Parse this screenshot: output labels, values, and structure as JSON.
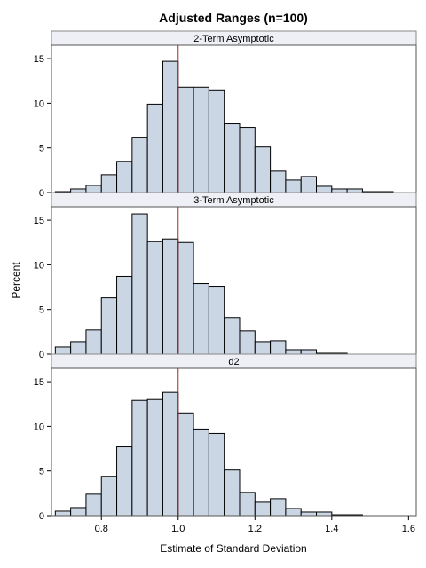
{
  "chart_data": {
    "type": "histogram",
    "title": "Adjusted Ranges (n=100)",
    "xlabel": "Estimate of Standard Deviation",
    "ylabel": "Percent",
    "xlim": [
      0.67,
      1.62
    ],
    "ylim": [
      0,
      16.5
    ],
    "xticks": [
      0.8,
      1.0,
      1.2,
      1.4,
      1.6
    ],
    "xtick_labels": [
      "0.8",
      "1.0",
      "1.2",
      "1.4",
      "1.6"
    ],
    "yticks": [
      0,
      5,
      10,
      15
    ],
    "ytick_labels": [
      "0",
      "5",
      "10",
      "15"
    ],
    "reference_line_x": 1.0,
    "reference_line_color": "#a52a2a",
    "bar_color": "#cbd6e4",
    "bin_width": 0.04,
    "bin_starts": [
      0.68,
      0.72,
      0.76,
      0.8,
      0.84,
      0.88,
      0.92,
      0.96,
      1.0,
      1.04,
      1.08,
      1.12,
      1.16,
      1.2,
      1.24,
      1.28,
      1.32,
      1.36,
      1.4,
      1.44,
      1.48,
      1.52
    ],
    "panels": [
      {
        "label": "2-Term Asymptotic",
        "values": [
          0.1,
          0.4,
          0.8,
          2.0,
          3.5,
          6.2,
          9.9,
          14.7,
          11.8,
          11.8,
          11.5,
          7.7,
          7.3,
          5.1,
          2.4,
          1.4,
          1.8,
          0.7,
          0.4,
          0.4,
          0.1,
          0.1
        ]
      },
      {
        "label": "3-Term Asymptotic",
        "values": [
          0.8,
          1.4,
          2.7,
          6.3,
          8.7,
          15.7,
          12.6,
          12.9,
          12.5,
          7.9,
          7.6,
          4.1,
          2.6,
          1.4,
          1.5,
          0.5,
          0.5,
          0.1,
          0.1,
          0.0,
          0.0,
          0.0
        ]
      },
      {
        "label": "d2",
        "values": [
          0.5,
          0.9,
          2.4,
          4.4,
          7.7,
          12.9,
          13.0,
          13.8,
          11.5,
          9.7,
          9.2,
          5.1,
          2.6,
          1.5,
          1.9,
          0.8,
          0.4,
          0.4,
          0.1,
          0.1,
          0.0,
          0.0
        ]
      }
    ]
  }
}
